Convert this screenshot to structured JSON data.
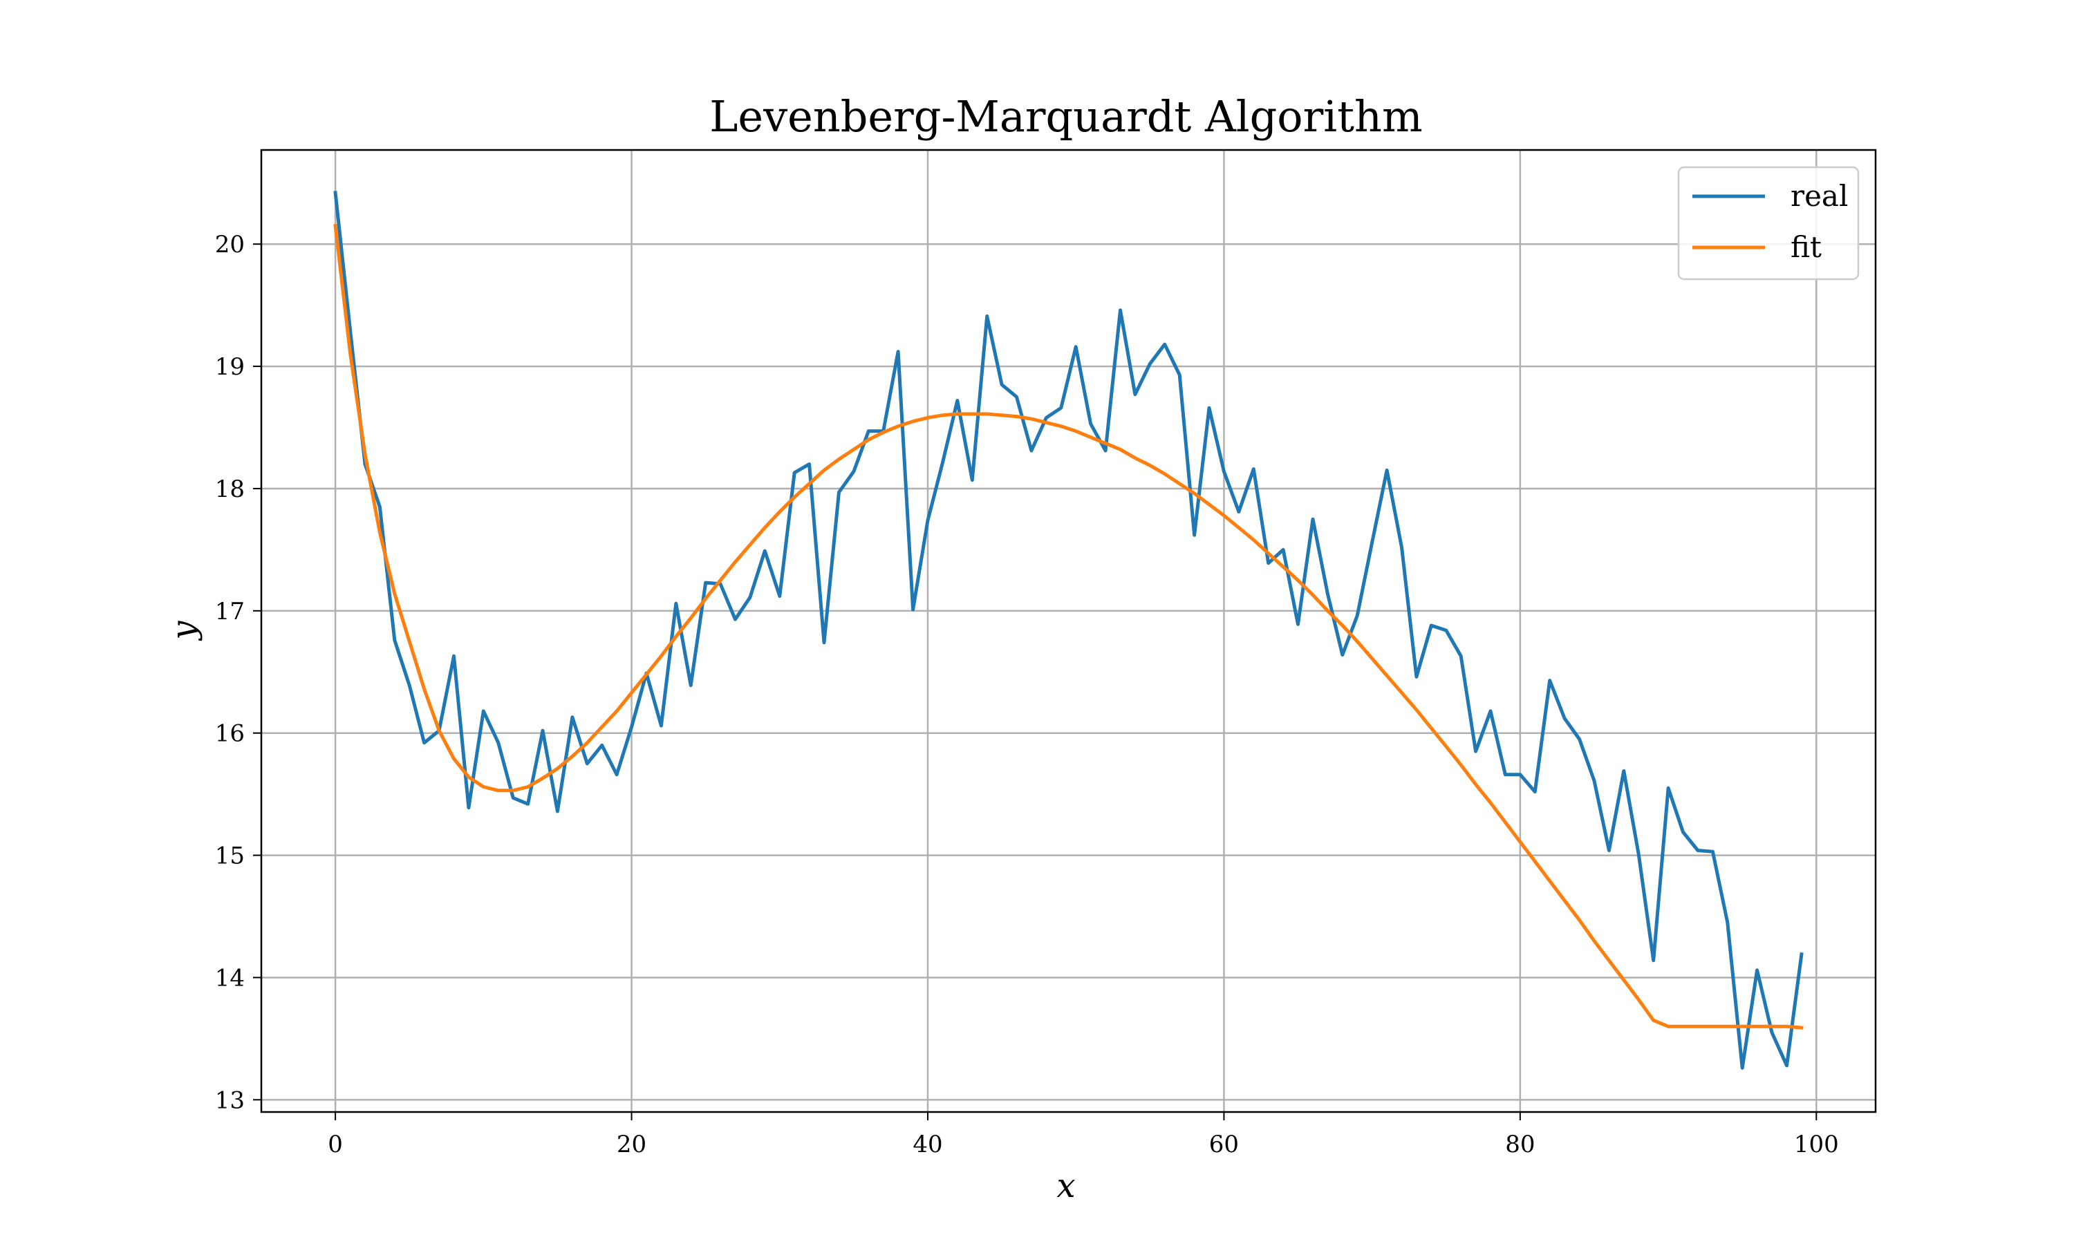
{
  "chart_data": {
    "type": "line",
    "title": "Levenberg-Marquardt Algorithm",
    "xlabel": "x",
    "ylabel": "y",
    "xlim": [
      -5,
      104
    ],
    "ylim": [
      12.9,
      20.77
    ],
    "xticks": [
      0,
      20,
      40,
      60,
      80,
      100
    ],
    "yticks": [
      13,
      14,
      15,
      16,
      17,
      18,
      19,
      20
    ],
    "grid": true,
    "legend": {
      "placement": "top-right"
    },
    "colors": {
      "real": "#1f77b4",
      "fit": "#ff7f0e"
    },
    "series": [
      {
        "name": "real",
        "x": [
          0,
          1,
          2,
          3,
          4,
          5,
          6,
          7,
          8,
          9,
          10,
          11,
          12,
          13,
          14,
          15,
          16,
          17,
          18,
          19,
          20,
          21,
          22,
          23,
          24,
          25,
          26,
          27,
          28,
          29,
          30,
          31,
          32,
          33,
          34,
          35,
          36,
          37,
          38,
          39,
          40,
          41,
          42,
          43,
          44,
          45,
          46,
          47,
          48,
          49,
          50,
          51,
          52,
          53,
          54,
          55,
          56,
          57,
          58,
          59,
          60,
          61,
          62,
          63,
          64,
          65,
          66,
          67,
          68,
          69,
          70,
          71,
          72,
          73,
          74,
          75,
          76,
          77,
          78,
          79,
          80,
          81,
          82,
          83,
          84,
          85,
          86,
          87,
          88,
          89,
          90,
          91,
          92,
          93,
          94,
          95,
          96,
          97,
          98,
          99
        ],
        "y": [
          20.42,
          19.3,
          18.2,
          17.85,
          16.76,
          16.39,
          15.92,
          16.02,
          16.63,
          15.39,
          16.18,
          15.92,
          15.47,
          15.42,
          16.02,
          15.36,
          16.13,
          15.75,
          15.9,
          15.66,
          16.05,
          16.49,
          16.06,
          17.06,
          16.39,
          17.23,
          17.22,
          16.93,
          17.11,
          17.49,
          17.12,
          18.13,
          18.2,
          16.74,
          17.97,
          18.14,
          18.47,
          18.47,
          19.12,
          17.01,
          17.74,
          18.21,
          18.72,
          18.07,
          19.41,
          18.85,
          18.75,
          18.31,
          18.58,
          18.66,
          19.16,
          18.53,
          18.31,
          19.46,
          18.77,
          19.02,
          19.18,
          18.93,
          17.62,
          18.66,
          18.14,
          17.81,
          18.16,
          17.39,
          17.5,
          16.89,
          17.75,
          17.14,
          16.64,
          16.96,
          17.56,
          18.15,
          17.52,
          16.46,
          16.88,
          16.84,
          16.63,
          15.85,
          16.18,
          15.66,
          15.66,
          15.52,
          16.43,
          16.12,
          15.95,
          15.61,
          15.04,
          15.69,
          15.01,
          14.14,
          15.55,
          15.19,
          15.04,
          15.03,
          14.45,
          13.26,
          14.06,
          13.55,
          13.28,
          14.19
        ]
      },
      {
        "name": "fit",
        "x": [
          0,
          1,
          2,
          3,
          4,
          5,
          6,
          7,
          8,
          9,
          10,
          11,
          12,
          13,
          14,
          15,
          16,
          17,
          18,
          19,
          20,
          21,
          22,
          23,
          24,
          25,
          26,
          27,
          28,
          29,
          30,
          31,
          32,
          33,
          34,
          35,
          36,
          37,
          38,
          39,
          40,
          41,
          42,
          43,
          44,
          45,
          46,
          47,
          48,
          49,
          50,
          51,
          52,
          53,
          54,
          55,
          56,
          57,
          58,
          59,
          60,
          61,
          62,
          63,
          64,
          65,
          66,
          67,
          68,
          69,
          70,
          71,
          72,
          73,
          74,
          75,
          76,
          77,
          78,
          79,
          80,
          81,
          82,
          83,
          84,
          85,
          86,
          87,
          88,
          89,
          90,
          91,
          92,
          93,
          94,
          95,
          96,
          97,
          98,
          99
        ],
        "y": [
          20.15,
          19.11,
          18.28,
          17.64,
          17.14,
          16.75,
          16.36,
          16.02,
          15.79,
          15.64,
          15.56,
          15.53,
          15.53,
          15.56,
          15.63,
          15.71,
          15.81,
          15.92,
          16.05,
          16.18,
          16.33,
          16.48,
          16.63,
          16.79,
          16.94,
          17.1,
          17.25,
          17.4,
          17.54,
          17.68,
          17.81,
          17.93,
          18.04,
          18.15,
          18.24,
          18.32,
          18.4,
          18.46,
          18.51,
          18.55,
          18.58,
          18.6,
          18.61,
          18.61,
          18.61,
          18.6,
          18.59,
          18.57,
          18.54,
          18.51,
          18.47,
          18.42,
          18.37,
          18.32,
          18.25,
          18.19,
          18.12,
          18.04,
          17.96,
          17.87,
          17.78,
          17.68,
          17.58,
          17.47,
          17.36,
          17.25,
          17.13,
          17.0,
          16.88,
          16.75,
          16.61,
          16.47,
          16.33,
          16.19,
          16.04,
          15.89,
          15.74,
          15.58,
          15.43,
          15.27,
          15.11,
          14.95,
          14.79,
          14.63,
          14.47,
          14.3,
          14.14,
          13.98,
          13.82,
          13.65,
          13.6,
          13.6,
          13.6,
          13.6,
          13.6,
          13.6,
          13.6,
          13.6,
          13.6,
          13.59
        ]
      }
    ]
  }
}
